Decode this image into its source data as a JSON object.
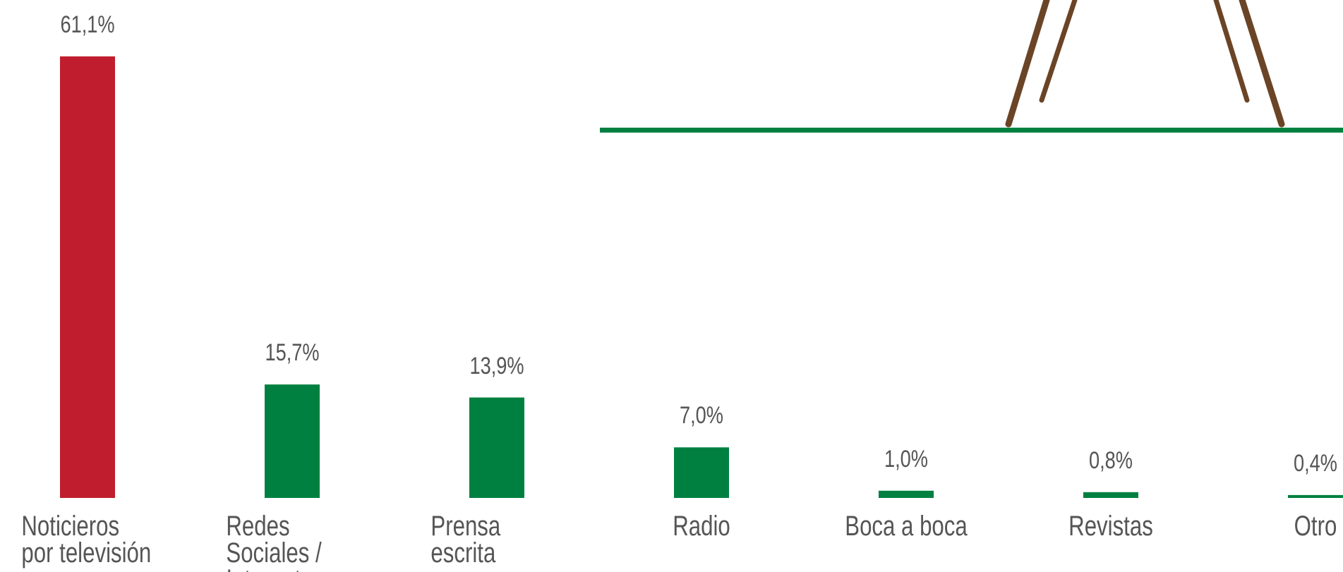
{
  "chart_data": {
    "type": "bar",
    "categories": [
      "Noticieros por televisión",
      "Redes Sociales / Internet",
      "Prensa escrita",
      "Radio",
      "Boca a boca",
      "Revistas",
      "Otro"
    ],
    "values": [
      61.1,
      15.7,
      13.9,
      7.0,
      1.0,
      0.8,
      0.4
    ],
    "value_labels": [
      "61,1%",
      "15,7%",
      "13,9%",
      "7,0%",
      "1,0%",
      "0,8%",
      "0,4%"
    ],
    "colors": [
      "#c01e2e",
      "#008040",
      "#008040",
      "#008040",
      "#008040",
      "#008040",
      "#008040"
    ],
    "ylim": [
      0,
      65
    ]
  }
}
